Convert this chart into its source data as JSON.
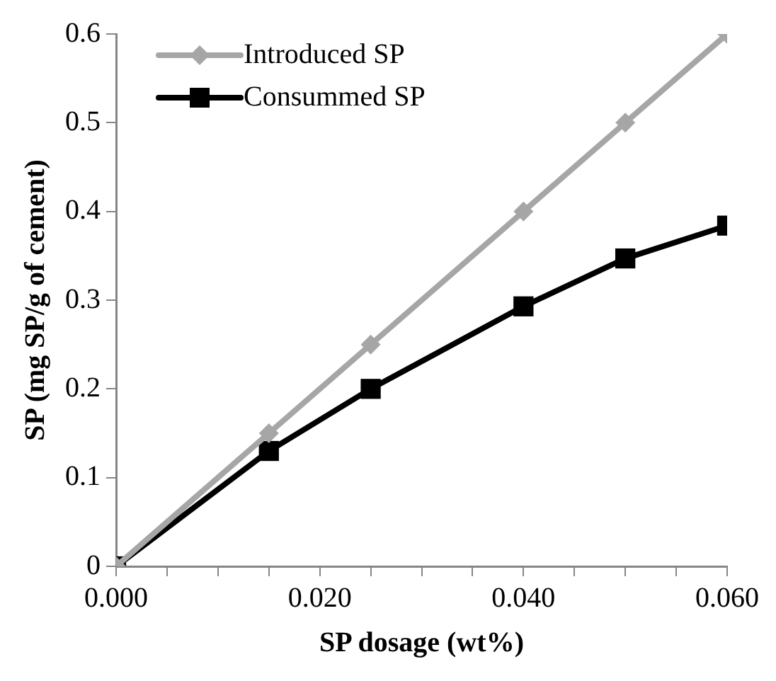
{
  "chart_data": {
    "type": "line",
    "xlabel": "SP dosage (wt%)",
    "ylabel": "SP (mg SP/g of cement)",
    "x": [
      0,
      0.015,
      0.025,
      0.04,
      0.05,
      0.06
    ],
    "series": [
      {
        "name": "Introduced SP",
        "color": "#a6a6a6",
        "marker": "diamond",
        "values": [
          0,
          0.15,
          0.25,
          0.4,
          0.5,
          0.6
        ]
      },
      {
        "name": "Consummed SP",
        "color": "#000000",
        "marker": "square",
        "values": [
          0,
          0.13,
          0.2,
          0.293,
          0.347,
          0.384
        ]
      }
    ],
    "xlim": [
      0,
      0.06
    ],
    "xticks": [
      {
        "value": 0,
        "label": "0.000"
      },
      {
        "value": 0.005,
        "label": null
      },
      {
        "value": 0.01,
        "label": null
      },
      {
        "value": 0.015,
        "label": null
      },
      {
        "value": 0.02,
        "label": "0.020"
      },
      {
        "value": 0.025,
        "label": null
      },
      {
        "value": 0.03,
        "label": null
      },
      {
        "value": 0.035,
        "label": null
      },
      {
        "value": 0.04,
        "label": "0.040"
      },
      {
        "value": 0.045,
        "label": null
      },
      {
        "value": 0.05,
        "label": null
      },
      {
        "value": 0.055,
        "label": null
      },
      {
        "value": 0.06,
        "label": "0.060"
      }
    ],
    "ylim": [
      0,
      0.6
    ],
    "yticks": [
      0,
      0.1,
      0.2,
      0.3,
      0.4,
      0.5,
      0.6
    ],
    "grid": false,
    "legend": "top left",
    "line_style": "solid"
  }
}
